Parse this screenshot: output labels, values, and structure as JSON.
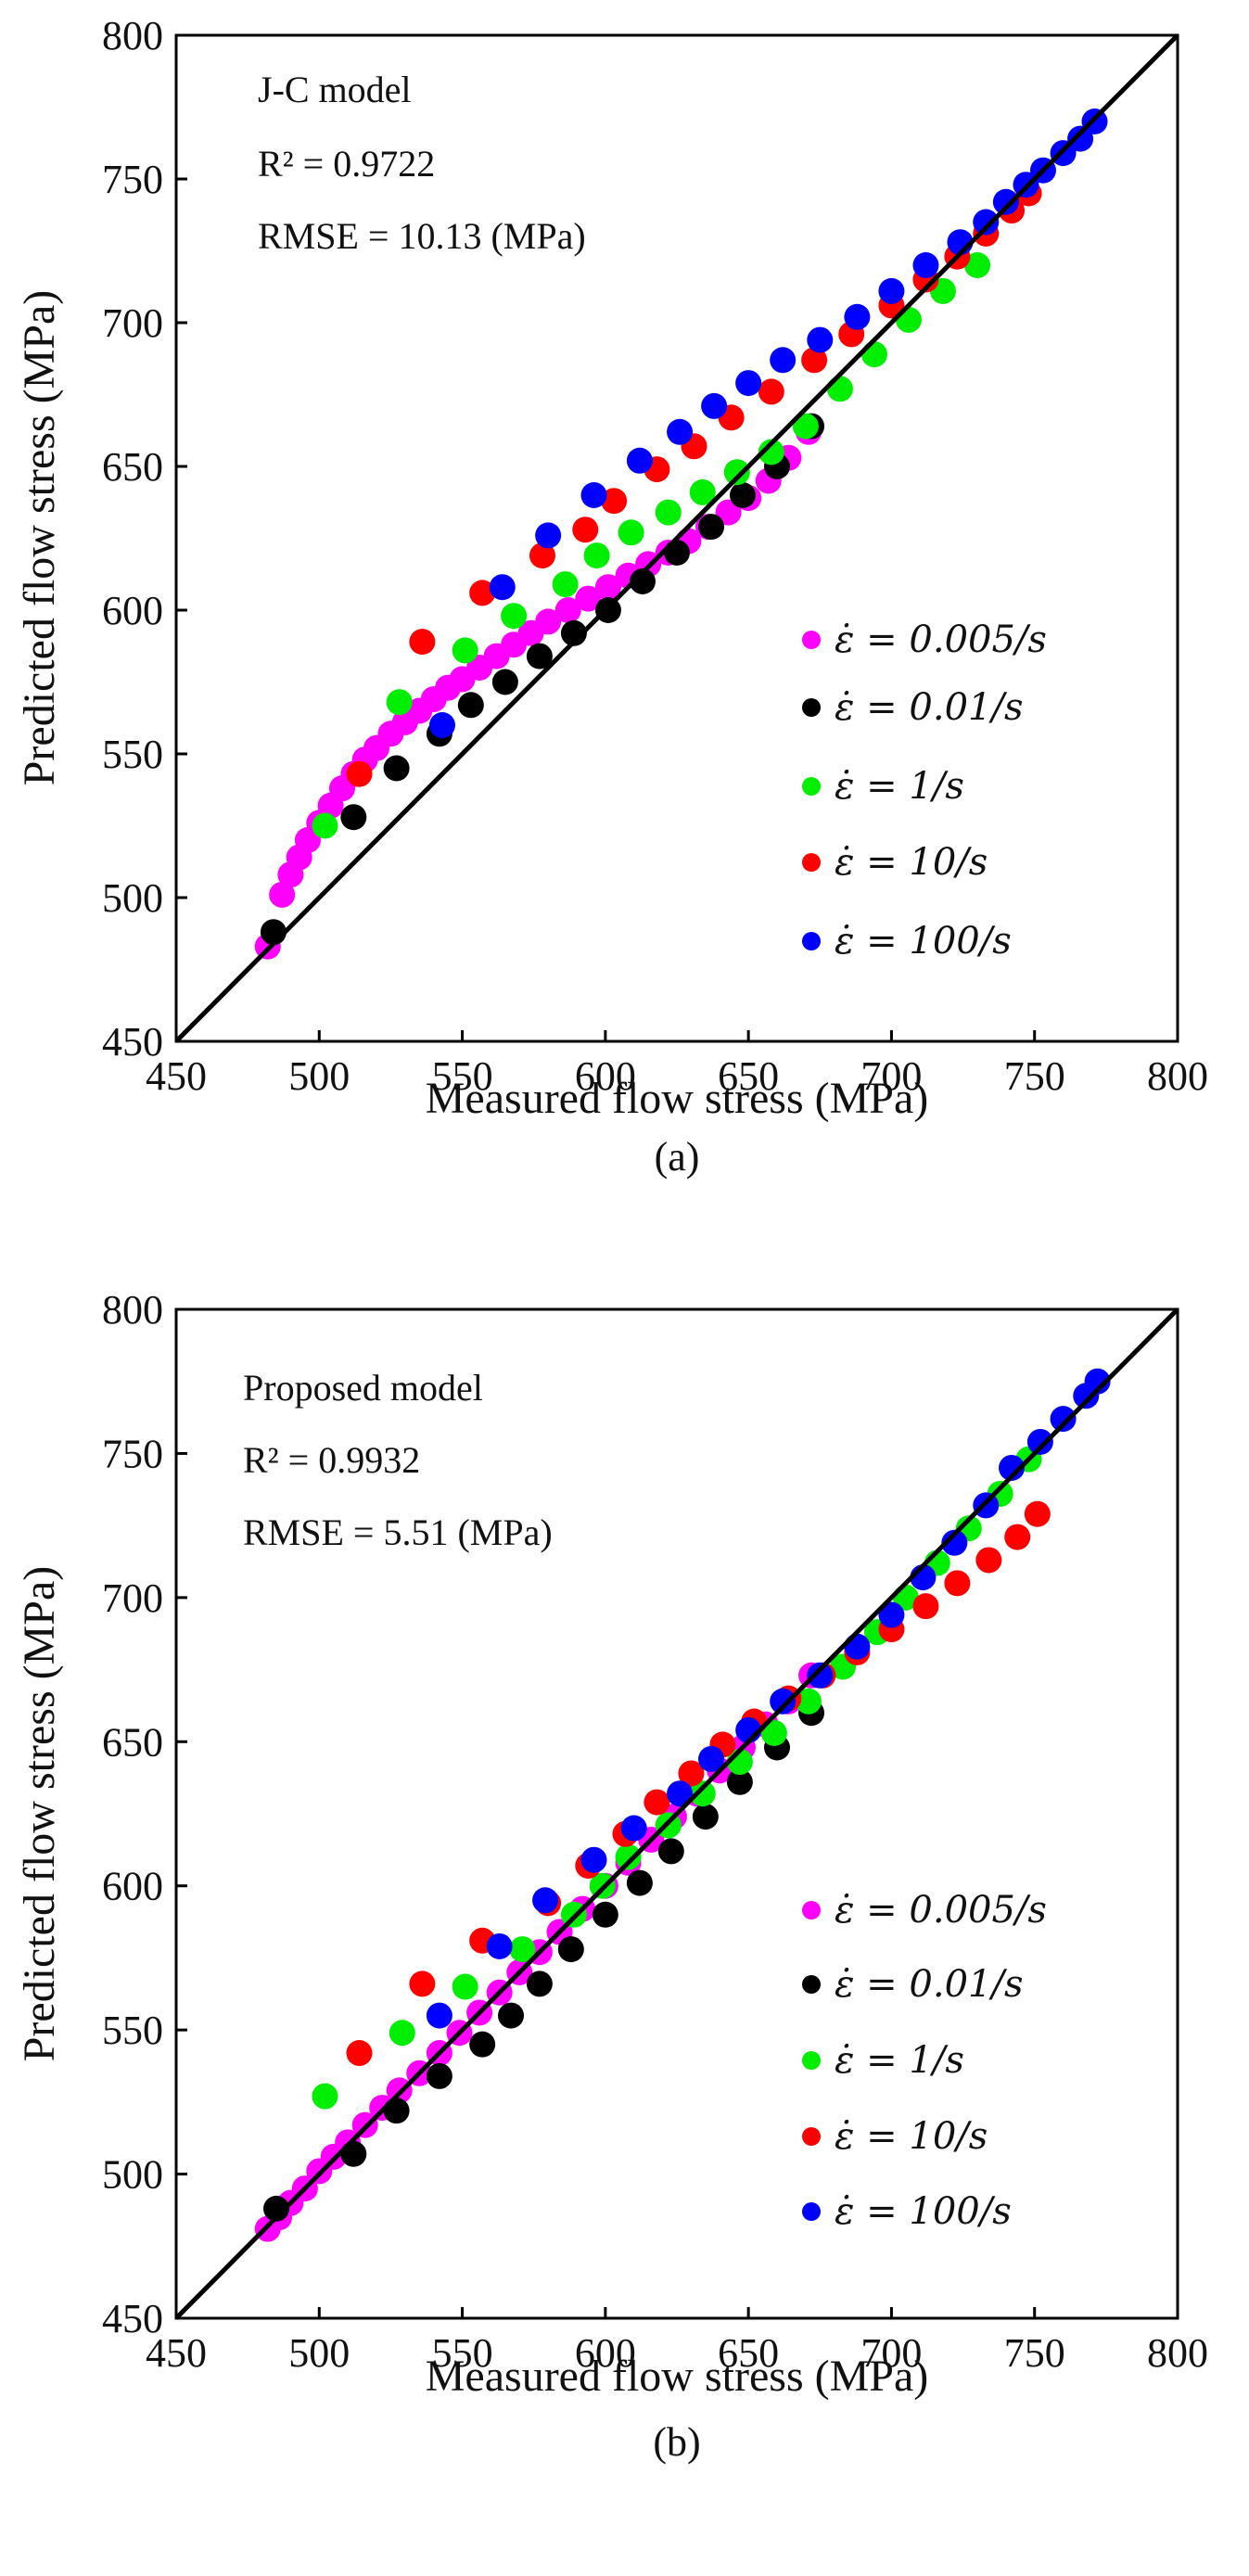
{
  "figure": {
    "panels": [
      {
        "caption": "(a)",
        "annotation": {
          "model": "J-C model",
          "r2": "R² = 0.9722",
          "rmse": "RMSE = 10.13 (MPa)"
        },
        "chart_data": {
          "type": "scatter",
          "title": "",
          "xlabel": "Measured flow stress (MPa)",
          "ylabel": "Predicted flow stress (MPa)",
          "xlim": [
            450,
            800
          ],
          "ylim": [
            450,
            800
          ],
          "xticks": [
            450,
            500,
            550,
            600,
            650,
            700,
            750,
            800
          ],
          "yticks": [
            450,
            500,
            550,
            600,
            650,
            700,
            750,
            800
          ],
          "reference_line": "y = x",
          "legend_position": "right-lower",
          "series": [
            {
              "name": "ε̇ = 0.005/s",
              "color": "#ff00ff",
              "x": [
                482,
                487,
                490,
                493,
                496,
                500,
                504,
                508,
                512,
                516,
                520,
                525,
                530,
                535,
                540,
                545,
                550,
                556,
                562,
                568,
                574,
                580,
                587,
                594,
                601,
                608,
                615,
                622,
                629,
                636,
                643,
                650,
                657,
                664,
                671
              ],
              "y": [
                483,
                501,
                508,
                514,
                520,
                526,
                532,
                538,
                543,
                548,
                552,
                557,
                561,
                565,
                569,
                573,
                576,
                580,
                584,
                588,
                592,
                596,
                600,
                604,
                608,
                612,
                616,
                620,
                624,
                629,
                634,
                639,
                645,
                653,
                662
              ]
            },
            {
              "name": "ε̇ = 0.01/s",
              "color": "#000000",
              "x": [
                484,
                512,
                527,
                542,
                553,
                565,
                577,
                589,
                601,
                613,
                625,
                637,
                648,
                660,
                672
              ],
              "y": [
                488,
                528,
                545,
                557,
                567,
                575,
                584,
                592,
                600,
                610,
                620,
                629,
                640,
                650,
                664
              ]
            },
            {
              "name": "ε̇ = 1/s",
              "color": "#00ee00",
              "x": [
                502,
                528,
                551,
                568,
                586,
                597,
                609,
                622,
                634,
                646,
                658,
                670,
                682,
                694,
                706,
                718,
                730
              ],
              "y": [
                525,
                568,
                586,
                598,
                609,
                619,
                627,
                634,
                641,
                648,
                655,
                664,
                677,
                689,
                701,
                711,
                720
              ]
            },
            {
              "name": "ε̇ = 10/s",
              "color": "#ff0000",
              "x": [
                514,
                536,
                557,
                578,
                593,
                603,
                618,
                631,
                644,
                658,
                673,
                686,
                700,
                712,
                723,
                733,
                742,
                748
              ],
              "y": [
                543,
                589,
                606,
                619,
                628,
                638,
                649,
                657,
                667,
                676,
                687,
                696,
                706,
                715,
                723,
                731,
                739,
                745
              ]
            },
            {
              "name": "ε̇ = 100/s",
              "color": "#0000ff",
              "x": [
                543,
                564,
                580,
                596,
                612,
                626,
                638,
                650,
                662,
                675,
                688,
                700,
                712,
                724,
                733,
                740,
                747,
                753,
                760,
                766,
                771
              ],
              "y": [
                560,
                608,
                626,
                640,
                652,
                662,
                671,
                679,
                687,
                694,
                702,
                711,
                720,
                728,
                735,
                742,
                748,
                753,
                759,
                764,
                770
              ]
            }
          ]
        }
      },
      {
        "caption": "(b)",
        "annotation": {
          "model": "Proposed model",
          "r2": "R² = 0.9932",
          "rmse": "RMSE = 5.51 (MPa)"
        },
        "chart_data": {
          "type": "scatter",
          "title": "",
          "xlabel": "Measured flow stress (MPa)",
          "ylabel": "Predicted flow stress (MPa)",
          "xlim": [
            450,
            800
          ],
          "ylim": [
            450,
            800
          ],
          "xticks": [
            450,
            500,
            550,
            600,
            650,
            700,
            750,
            800
          ],
          "yticks": [
            450,
            500,
            550,
            600,
            650,
            700,
            750,
            800
          ],
          "reference_line": "y = x",
          "legend_position": "right-lower",
          "series": [
            {
              "name": "ε̇ = 0.005/s",
              "color": "#ff00ff",
              "x": [
                482,
                486,
                490,
                495,
                500,
                505,
                510,
                516,
                522,
                528,
                535,
                542,
                549,
                556,
                563,
                570,
                577,
                584,
                592,
                600,
                608,
                616,
                624,
                632,
                640,
                648,
                656,
                664,
                672
              ],
              "y": [
                481,
                485,
                490,
                495,
                501,
                506,
                511,
                517,
                523,
                529,
                535,
                542,
                549,
                556,
                563,
                570,
                577,
                584,
                592,
                600,
                608,
                616,
                624,
                632,
                640,
                648,
                656,
                664,
                673
              ]
            },
            {
              "name": "ε̇ = 0.01/s",
              "color": "#000000",
              "x": [
                485,
                512,
                527,
                542,
                557,
                567,
                577,
                588,
                600,
                612,
                623,
                635,
                647,
                660,
                672
              ],
              "y": [
                488,
                507,
                522,
                534,
                545,
                555,
                566,
                578,
                590,
                601,
                612,
                624,
                636,
                648,
                660
              ]
            },
            {
              "name": "ε̇ = 1/s",
              "color": "#00ee00",
              "x": [
                502,
                529,
                551,
                571,
                589,
                599,
                608,
                622,
                634,
                647,
                659,
                671,
                683,
                695,
                705,
                716,
                727,
                738,
                748
              ],
              "y": [
                527,
                549,
                565,
                578,
                590,
                600,
                610,
                621,
                632,
                643,
                653,
                664,
                676,
                688,
                700,
                712,
                724,
                736,
                748
              ]
            },
            {
              "name": "ε̇ = 10/s",
              "color": "#ff0000",
              "x": [
                514,
                536,
                557,
                580,
                594,
                607,
                618,
                630,
                641,
                652,
                664,
                676,
                688,
                700,
                712,
                723,
                734,
                744,
                751
              ],
              "y": [
                542,
                566,
                581,
                594,
                607,
                618,
                629,
                639,
                649,
                657,
                665,
                673,
                681,
                689,
                697,
                705,
                713,
                721,
                729
              ]
            },
            {
              "name": "ε̇ = 100/s",
              "color": "#0000ff",
              "x": [
                542,
                563,
                579,
                596,
                610,
                626,
                637,
                650,
                662,
                675,
                688,
                700,
                711,
                722,
                733,
                742,
                752,
                760,
                768,
                772
              ],
              "y": [
                555,
                579,
                595,
                609,
                620,
                632,
                644,
                654,
                664,
                673,
                683,
                694,
                707,
                719,
                732,
                745,
                754,
                762,
                770,
                775
              ]
            }
          ]
        }
      }
    ]
  }
}
